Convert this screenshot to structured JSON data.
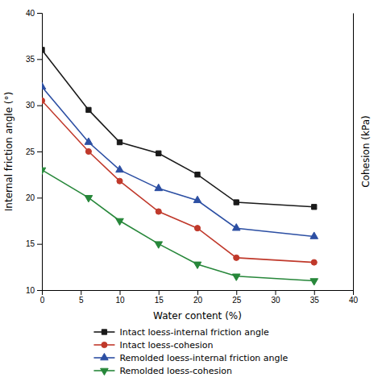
{
  "chart_data": {
    "type": "line",
    "x": [
      0,
      6,
      10,
      15,
      20,
      25,
      35
    ],
    "series": [
      {
        "name": "Intact loess-internal friction angle",
        "color": "#1a1a1a",
        "marker": "square",
        "values": [
          36,
          29.5,
          26,
          24.8,
          22.5,
          19.5,
          19
        ]
      },
      {
        "name": "Intact loess-cohesion",
        "color": "#c0392b",
        "marker": "circle",
        "values": [
          30.5,
          25,
          21.8,
          18.5,
          16.7,
          13.5,
          13
        ]
      },
      {
        "name": "Remolded loess-internal friction angle",
        "color": "#2c4fa3",
        "marker": "triangle-up",
        "values": [
          32,
          26,
          23,
          21,
          19.7,
          16.7,
          15.8
        ]
      },
      {
        "name": "Remolded loess-cohesion",
        "color": "#27873a",
        "marker": "triangle-down",
        "values": [
          23,
          20,
          17.5,
          15,
          12.8,
          11.5,
          11
        ]
      }
    ],
    "xlabel": "Water content (%)",
    "ylabel": "Internal friction angle (°)",
    "y2label": "Cohesion (kPa)",
    "xlim": [
      0,
      40
    ],
    "ylim": [
      10,
      40
    ],
    "xticks": [
      0,
      5,
      10,
      15,
      20,
      25,
      30,
      35,
      40
    ],
    "yticks": [
      10,
      15,
      20,
      25,
      30,
      35,
      40
    ],
    "legend": "bottom"
  }
}
